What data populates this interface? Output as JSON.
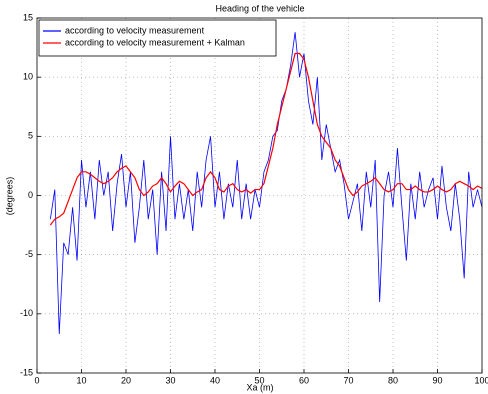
{
  "chart_data": {
    "type": "line",
    "title": "Heading of the vehicle",
    "x_label": "Xa (m)",
    "y_label": "(degrees)",
    "x": [
      3,
      4,
      5,
      6,
      7,
      8,
      9,
      10,
      11,
      12,
      13,
      14,
      15,
      16,
      17,
      18,
      19,
      20,
      21,
      22,
      23,
      24,
      25,
      26,
      27,
      28,
      29,
      30,
      31,
      32,
      33,
      34,
      35,
      36,
      37,
      38,
      39,
      40,
      41,
      42,
      43,
      44,
      45,
      46,
      47,
      48,
      49,
      50,
      51,
      52,
      53,
      54,
      55,
      56,
      57,
      58,
      59,
      60,
      61,
      62,
      63,
      64,
      65,
      66,
      67,
      68,
      69,
      70,
      71,
      72,
      73,
      74,
      75,
      76,
      77,
      78,
      79,
      80,
      81,
      82,
      83,
      84,
      85,
      86,
      87,
      88,
      89,
      90,
      91,
      92,
      93,
      94,
      95,
      96,
      97,
      98,
      99,
      100
    ],
    "series": [
      {
        "name": "according to velocity measurement",
        "color": "#0000ff",
        "values": [
          -2,
          0.5,
          -11.7,
          -4,
          -5,
          -1,
          -5.5,
          3,
          -1,
          2,
          -2,
          3,
          0,
          2,
          -3,
          1,
          3.5,
          -1,
          2,
          -4,
          -1,
          3,
          -2,
          0.5,
          -5,
          2,
          -3,
          5,
          -2,
          1,
          -2,
          0.5,
          -3,
          2,
          -1,
          3,
          5,
          -1,
          2,
          -2,
          1,
          -1,
          3,
          -2,
          1,
          -2,
          0.5,
          -1,
          2,
          3,
          5,
          5.5,
          8,
          9,
          11,
          13.8,
          10,
          12,
          8,
          6,
          10,
          3,
          6,
          4,
          2,
          3,
          1,
          -2,
          -0.5,
          1,
          -3,
          2,
          -1,
          3,
          -9,
          0,
          2,
          -1,
          4,
          -1,
          -5.5,
          1,
          -2,
          2,
          -1,
          0.5,
          1.5,
          -2,
          2.5,
          -1,
          -3,
          1,
          -2,
          -7,
          2,
          -1,
          0.5,
          -1
        ]
      },
      {
        "name": "according to velocity measurement + Kalman",
        "color": "#ff0000",
        "values": [
          -2.5,
          -2,
          -1.8,
          -1.5,
          -0.5,
          0.5,
          1.5,
          2,
          2,
          1.8,
          1.5,
          1.2,
          1,
          1.2,
          1.5,
          2,
          2.3,
          2.5,
          2,
          1.5,
          0.5,
          0,
          0.3,
          0.8,
          1,
          1.5,
          1,
          0.3,
          0.8,
          1.2,
          1,
          0.5,
          0,
          0.3,
          0.5,
          1.5,
          2,
          1.5,
          0.5,
          0.3,
          0.8,
          1,
          0.5,
          0.3,
          0.5,
          0.2,
          0.5,
          0.5,
          1,
          2.5,
          4,
          6,
          7.5,
          9,
          10.5,
          12,
          12,
          11.5,
          10,
          8,
          6,
          5,
          4.5,
          4,
          3,
          2.5,
          1.5,
          0.5,
          0,
          0.3,
          0.8,
          1,
          1.2,
          1.5,
          1,
          0.5,
          0.3,
          0.5,
          1,
          1,
          0.5,
          0.5,
          0.8,
          0.5,
          0.3,
          0.3,
          0.5,
          0.8,
          0.5,
          0.3,
          0.5,
          1,
          1.2,
          1,
          0.8,
          0.5,
          0.8,
          0.6
        ]
      }
    ],
    "xlim": [
      0,
      100
    ],
    "xticks": [
      0,
      10,
      20,
      30,
      40,
      50,
      60,
      70,
      80,
      90,
      100
    ],
    "ylim": [
      -15,
      15
    ],
    "yticks": [
      -15,
      -10,
      -5,
      0,
      5,
      10,
      15
    ],
    "grid": true,
    "legend": "upper left"
  }
}
